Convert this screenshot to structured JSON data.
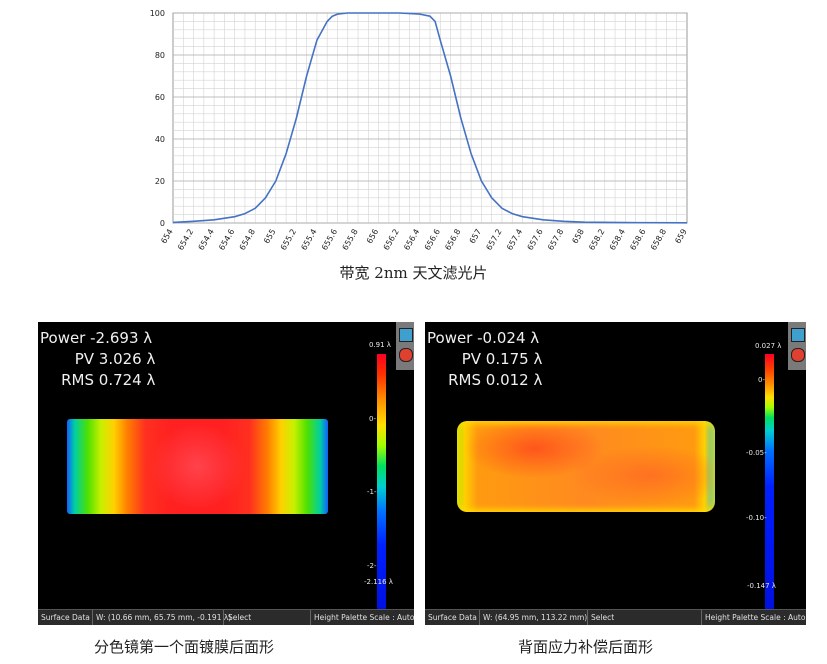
{
  "chart_data": {
    "type": "line",
    "title": "",
    "xlabel": "",
    "ylabel": "",
    "xlim": [
      654,
      659
    ],
    "ylim": [
      0,
      100
    ],
    "x_ticks": [
      "654",
      "654.2",
      "654.4",
      "654.6",
      "654.8",
      "655",
      "655.2",
      "655.4",
      "655.6",
      "655.8",
      "656",
      "656.2",
      "656.4",
      "656.6",
      "656.8",
      "657",
      "657.2",
      "657.4",
      "657.6",
      "657.8",
      "658",
      "658.2",
      "658.4",
      "658.6",
      "658.8",
      "659"
    ],
    "y_ticks": [
      "0",
      "20",
      "40",
      "60",
      "80",
      "100"
    ],
    "grid": true,
    "series_color": "#4472c4",
    "series": [
      {
        "x": [
          654.0,
          654.2,
          654.4,
          654.6,
          654.7,
          654.8,
          654.9,
          655.0,
          655.1,
          655.2,
          655.3,
          655.4,
          655.5,
          655.55,
          655.6,
          655.7,
          655.8,
          656.0,
          656.2,
          656.4,
          656.5,
          656.55,
          656.6,
          656.7,
          656.8,
          656.9,
          657.0,
          657.1,
          657.2,
          657.3,
          657.4,
          657.6,
          657.8,
          658.0,
          658.4,
          659.0
        ],
        "y": [
          0.3,
          0.8,
          1.5,
          3.0,
          4.5,
          7,
          12,
          20,
          33,
          50,
          70,
          87,
          96,
          98.5,
          99.5,
          100,
          100,
          100,
          100,
          99.5,
          98.5,
          96,
          87,
          70,
          50,
          33,
          20,
          12,
          7,
          4.5,
          3,
          1.5,
          0.8,
          0.4,
          0.2,
          0.1
        ]
      }
    ]
  },
  "captions": {
    "chart": "带宽 2nm 天文滤光片",
    "left": "分色镜第一个面镀膜后面形",
    "right": "背面应力补偿后面形"
  },
  "panels": {
    "left": {
      "power_label": "Power",
      "power_value": "-2.693 λ",
      "pv_label": "PV",
      "pv_value": "3.026 λ",
      "rms_label": "RMS",
      "rms_value": "0.724 λ",
      "scale_labels": [
        "0.91 λ",
        "0-",
        "-1-",
        "-2-",
        "-2.116 λ"
      ],
      "status": [
        "Surface Data",
        "W: (10.66 mm, 65.75 mm, -0.191 λ)",
        "Select",
        "Height Palette Scale : Auto"
      ]
    },
    "right": {
      "power_label": "Power",
      "power_value": "-0.024 λ",
      "pv_label": "PV",
      "pv_value": "0.175 λ",
      "rms_label": "RMS",
      "rms_value": "0.012 λ",
      "scale_labels": [
        "0.027 λ",
        "0-",
        "-0.05-",
        "-0.10-",
        "-0.147 λ"
      ],
      "status": [
        "Surface Data",
        "W: (64.95 mm, 113.22 mm)",
        "Select",
        "Height Palette Scale : Auto"
      ]
    }
  }
}
